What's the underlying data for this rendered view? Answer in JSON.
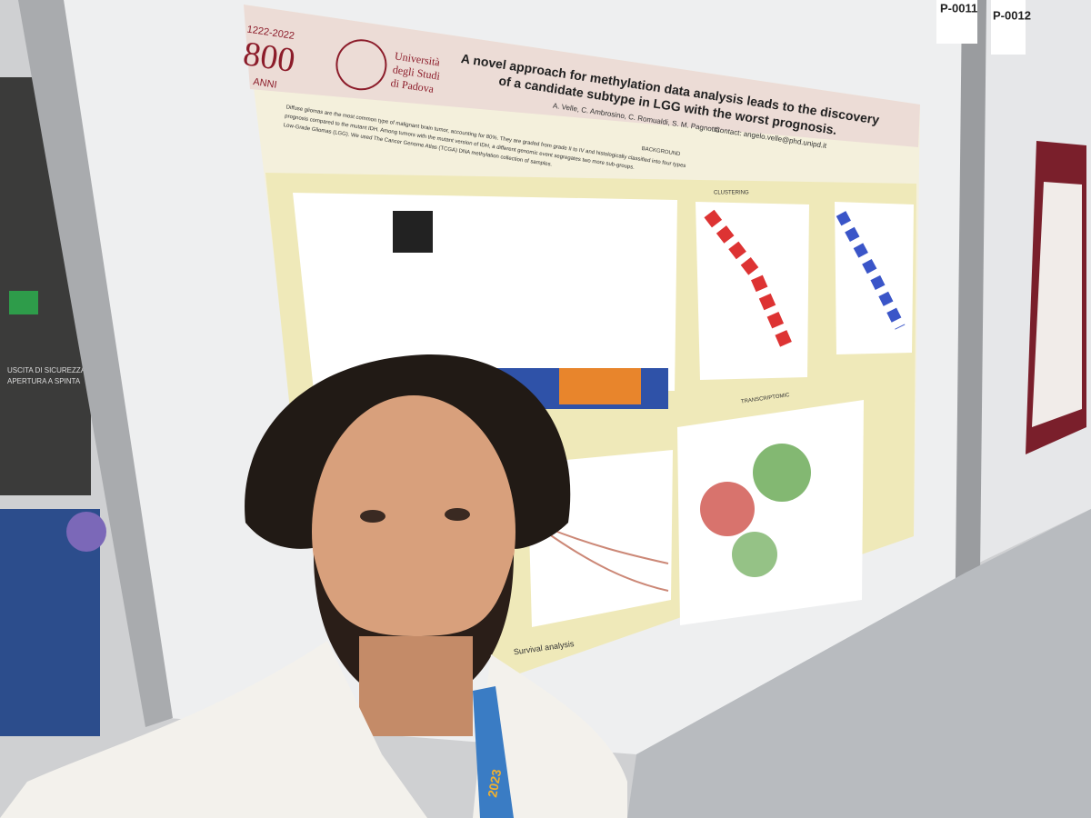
{
  "poster": {
    "logo_years": "1222-2022",
    "logo_number": "800",
    "logo_anni": "ANNI",
    "university": [
      "Università",
      "degli Studi",
      "di Padova"
    ],
    "title": [
      "A novel approach for methylation data analysis leads to the discovery",
      "of a candidate subtype in LGG with the worst prognosis."
    ],
    "authors": "A. Velle, C. Ambrosino, C. Romualdi, S. M. Pagnotta",
    "contact": "Contact: angelo.velle@phd.unipd.it",
    "sections": {
      "background": "BACKGROUND",
      "clustering": "CLUSTERING",
      "transcriptomic": "TRANSCRIPTOMIC",
      "survival": "Survival analysis",
      "clustering_left": "clustering"
    },
    "background_text": [
      "Diffuse gliomas are the most common type of malignant brain tumor, accounting for 80%. They are graded from grade II to IV and histologically classified into four types",
      "prognosis compared to the mutant IDH. Among tumors with the mutant version of IDH, a different genomic event segregates two more sub-groups.",
      "Low-Grade Gliomas (LGG). We used The Cancer Genome Atlas (TCGA) DNA methylation collection of samples."
    ]
  },
  "signs": {
    "board_left": "P-0011",
    "board_right": "P-0012",
    "exit": [
      "USCITA DI SICUREZZA",
      "APERTURA A SPINTA"
    ]
  },
  "lanyard": "2023"
}
